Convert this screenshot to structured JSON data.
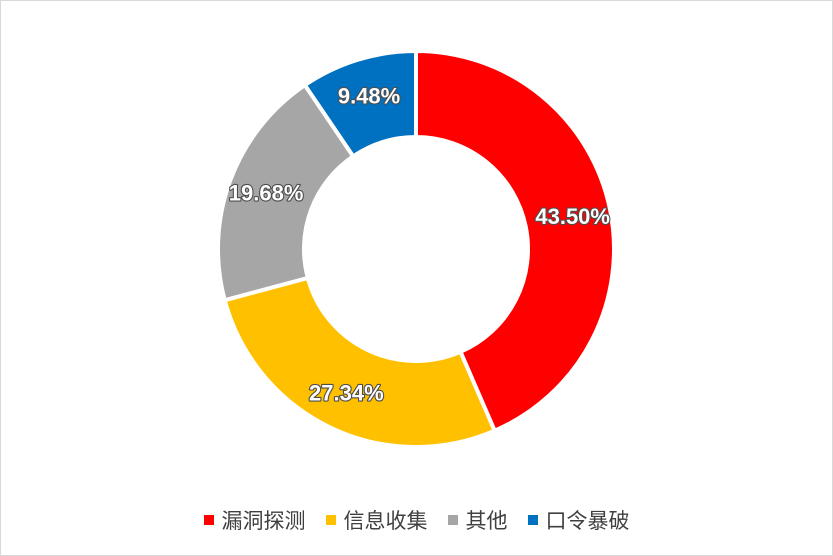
{
  "chart_data": {
    "type": "pie",
    "donut": true,
    "title": "",
    "categories": [
      "漏洞探测",
      "信息收集",
      "其他",
      "口令暴破"
    ],
    "values": [
      43.5,
      27.34,
      19.68,
      9.48
    ],
    "labels": [
      "43.50%",
      "27.34%",
      "19.68%",
      "9.48%"
    ],
    "colors": [
      "#ff0000",
      "#ffc000",
      "#a6a6a6",
      "#0070c0"
    ],
    "legend_position": "bottom",
    "start_angle": "12 o'clock",
    "direction": "clockwise"
  }
}
